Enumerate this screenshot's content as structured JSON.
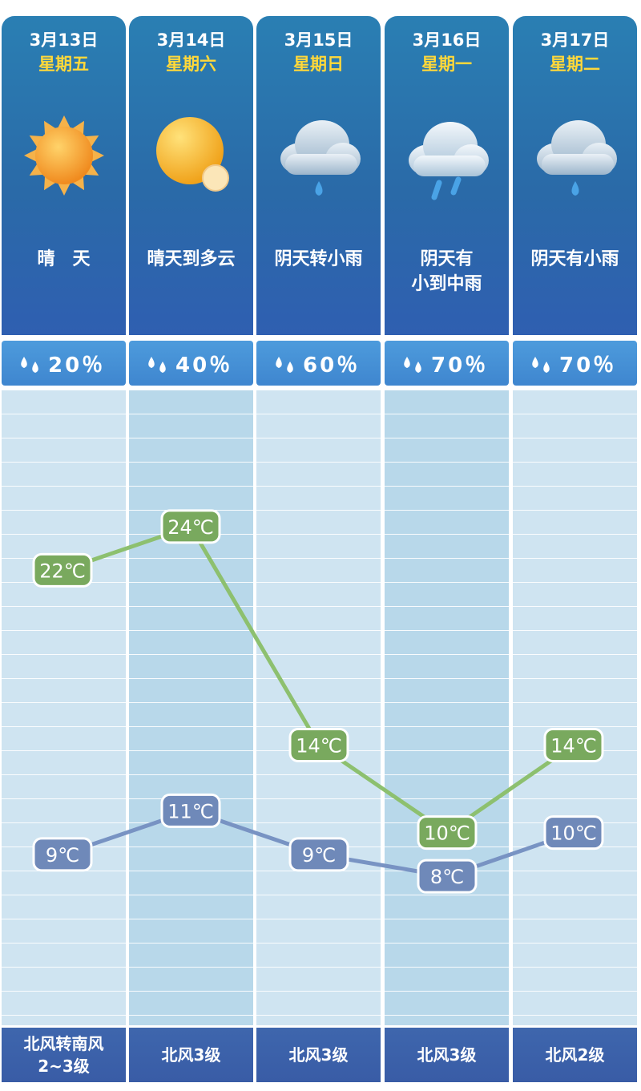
{
  "days": [
    {
      "date": "3月13日",
      "weekday": "星期五",
      "condition": "晴　天",
      "icon": "sun-icon",
      "precip": "20％",
      "wind": "北风转南风\n2~3级"
    },
    {
      "date": "3月14日",
      "weekday": "星期六",
      "condition": "晴天到多云",
      "icon": "sun-cloud-icon",
      "precip": "40％",
      "wind": "北风3级"
    },
    {
      "date": "3月15日",
      "weekday": "星期日",
      "condition": "阴天转小雨",
      "icon": "cloud-rain-icon",
      "precip": "60％",
      "wind": "北风3级"
    },
    {
      "date": "3月16日",
      "weekday": "星期一",
      "condition": "阴天有\n小到中雨",
      "icon": "cloud-heavy-rain-icon",
      "precip": "70％",
      "wind": "北风3级"
    },
    {
      "date": "3月17日",
      "weekday": "星期二",
      "condition": "阴天有小雨",
      "icon": "cloud-rain-icon",
      "precip": "70％",
      "wind": "北风2级"
    }
  ],
  "colors": {
    "high": "#79a95e",
    "high_line": "#8dc06f",
    "low": "#6f89b9",
    "low_line": "#7893c3",
    "weekday": "#ffd83a"
  },
  "chart_data": {
    "type": "line",
    "categories": [
      "3月13日",
      "3月14日",
      "3月15日",
      "3月16日",
      "3月17日"
    ],
    "series": [
      {
        "values": [
          22,
          24,
          14,
          10,
          14
        ],
        "labels": [
          "22℃",
          "24℃",
          "14℃",
          "10℃",
          "14℃"
        ]
      },
      {
        "values": [
          9,
          11,
          9,
          8,
          10
        ],
        "labels": [
          "9℃",
          "11℃",
          "9℃",
          "8℃",
          "10℃"
        ]
      }
    ],
    "ylim": [
      5,
      27
    ],
    "grid": true
  }
}
